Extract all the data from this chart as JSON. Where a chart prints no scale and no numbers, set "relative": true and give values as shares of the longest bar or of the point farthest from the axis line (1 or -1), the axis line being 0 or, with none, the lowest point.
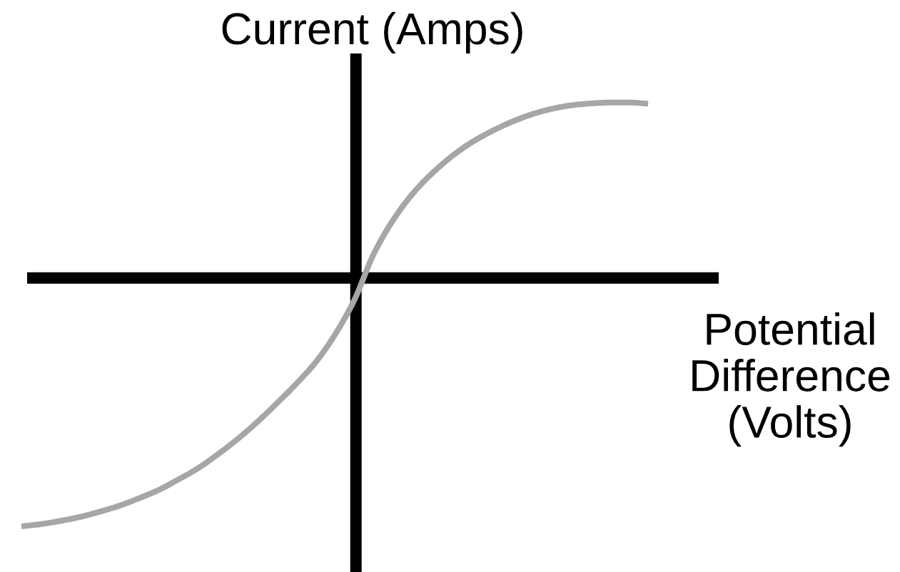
{
  "chart_data": {
    "type": "line",
    "relative": true,
    "ylabel": "Current (Amps)",
    "xlabel": "Potential\nDifference\n(Volts)",
    "categories": [
      null,
      null,
      null,
      null,
      null,
      null,
      null,
      null,
      null,
      null,
      null,
      null,
      null,
      null,
      null,
      null,
      null,
      null,
      null,
      null,
      null,
      null,
      null,
      null,
      null,
      null,
      null,
      null,
      null,
      null,
      null,
      null,
      null
    ],
    "series": [
      {
        "color": "#a6a6a6",
        "values": [
          -1,
          -0.991,
          -0.978,
          -0.962,
          -0.941,
          -0.917,
          -0.887,
          -0.854,
          -0.812,
          -0.767,
          -0.712,
          -0.651,
          -0.583,
          -0.508,
          -0.429,
          -0.342,
          -0.23,
          -0.089,
          0.098,
          0.235,
          0.341,
          0.423,
          0.491,
          0.546,
          0.59,
          0.627,
          0.657,
          0.679,
          0.694,
          0.702,
          0.706,
          0.706,
          0.701
        ]
      }
    ],
    "line_style": "solid"
  }
}
